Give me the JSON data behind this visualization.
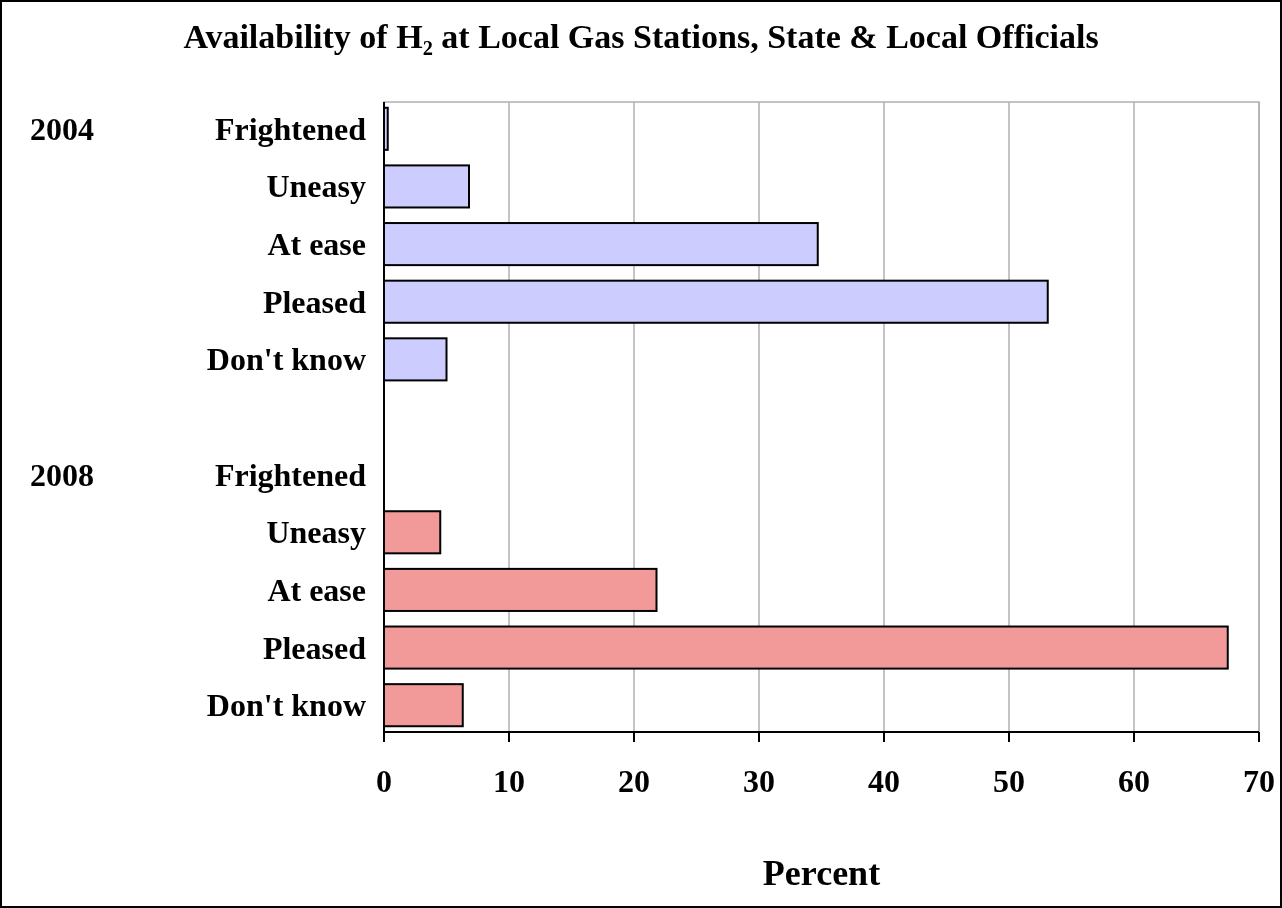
{
  "chart_data": {
    "type": "bar",
    "orientation": "horizontal",
    "title": "Availability of H₂ at Local Gas Stations, State & Local Officials",
    "xlabel": "Percent",
    "categories": [
      "Frightened",
      "Uneasy",
      "At ease",
      "Pleased",
      "Don't know",
      null,
      "Frightened",
      "Uneasy",
      "At ease",
      "Pleased",
      "Don't know"
    ],
    "series": [
      {
        "color": "#ccccff",
        "values": [
          0.3,
          6.8,
          34.7,
          53.1,
          5.0,
          null,
          null,
          null,
          null,
          null,
          null
        ]
      },
      {
        "color": "#f29a9a",
        "values": [
          null,
          null,
          null,
          null,
          null,
          null,
          0,
          4.5,
          21.8,
          67.5,
          6.3
        ]
      }
    ],
    "xlim": [
      0,
      70
    ],
    "xticks": [
      0,
      10,
      20,
      30,
      40,
      50,
      60,
      70
    ],
    "grid": "x",
    "annotations": [
      "2004",
      "2008"
    ]
  }
}
